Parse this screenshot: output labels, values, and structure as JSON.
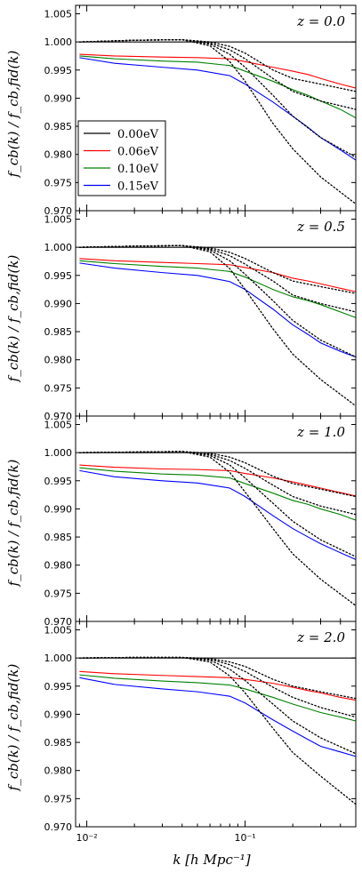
{
  "colors": {
    "0.00eV": "#000000",
    "0.06eV": "#ff0000",
    "0.10eV": "#008000",
    "0.15eV": "#0000ff",
    "dotted": "#000000"
  },
  "xlabel": "k [h Mpc⁻¹]",
  "ylabel": "f_cb(k) / f_cb,fid(k)",
  "chart_data": [
    {
      "type": "line",
      "z_label": "z = 0.0",
      "xscale": "log",
      "xlim": [
        0.0085,
        0.5
      ],
      "ylim": [
        0.97,
        1.0065
      ],
      "yticks": [
        "0.970",
        "0.975",
        "0.980",
        "0.985",
        "0.990",
        "0.995",
        "1.000",
        "1.005"
      ],
      "xticks": [
        "10⁻²",
        "10⁻¹"
      ],
      "legend": {
        "placement": "center-left",
        "entries": [
          "0.00eV",
          "0.06eV",
          "0.10eV",
          "0.15eV"
        ]
      },
      "series": [
        {
          "name": "0.00eV",
          "style": "solid",
          "x": [
            0.009,
            0.5
          ],
          "y": [
            1.0,
            1.0
          ]
        },
        {
          "name": "0.06eV",
          "style": "solid",
          "x": [
            0.009,
            0.015,
            0.03,
            0.05,
            0.08,
            0.1,
            0.15,
            0.2,
            0.25,
            0.3,
            0.4,
            0.5
          ],
          "y": [
            0.9978,
            0.9975,
            0.9973,
            0.9972,
            0.997,
            0.9965,
            0.9955,
            0.9948,
            0.9942,
            0.9935,
            0.9925,
            0.9918
          ]
        },
        {
          "name": "0.10eV",
          "style": "solid",
          "x": [
            0.009,
            0.015,
            0.03,
            0.05,
            0.08,
            0.1,
            0.15,
            0.2,
            0.25,
            0.3,
            0.4,
            0.5
          ],
          "y": [
            0.9975,
            0.997,
            0.9966,
            0.9964,
            0.9958,
            0.9948,
            0.993,
            0.9915,
            0.9905,
            0.9895,
            0.988,
            0.9865
          ]
        },
        {
          "name": "0.15eV",
          "style": "solid",
          "x": [
            0.009,
            0.015,
            0.03,
            0.05,
            0.08,
            0.1,
            0.15,
            0.2,
            0.25,
            0.3,
            0.4,
            0.5
          ],
          "y": [
            0.9972,
            0.9962,
            0.9955,
            0.995,
            0.994,
            0.9925,
            0.9893,
            0.9868,
            0.9848,
            0.983,
            0.9808,
            0.979
          ]
        },
        {
          "style": "dotted",
          "x": [
            0.009,
            0.02,
            0.04,
            0.06,
            0.08,
            0.1,
            0.15,
            0.2,
            0.3,
            0.5
          ],
          "y": [
            1.0,
            1.0003,
            1.0004,
            1.0,
            0.9992,
            0.998,
            0.995,
            0.9935,
            0.9925,
            0.9912
          ]
        },
        {
          "style": "dotted",
          "x": [
            0.009,
            0.02,
            0.04,
            0.06,
            0.08,
            0.1,
            0.15,
            0.2,
            0.3,
            0.5
          ],
          "y": [
            1.0,
            1.0003,
            1.0004,
            0.9998,
            0.9986,
            0.997,
            0.9935,
            0.9912,
            0.9895,
            0.988
          ]
        },
        {
          "style": "dotted",
          "x": [
            0.009,
            0.02,
            0.04,
            0.06,
            0.08,
            0.1,
            0.15,
            0.2,
            0.3,
            0.5
          ],
          "y": [
            1.0,
            1.0003,
            1.0004,
            0.9996,
            0.9978,
            0.9955,
            0.9905,
            0.9868,
            0.983,
            0.9795
          ]
        },
        {
          "style": "dotted",
          "x": [
            0.009,
            0.02,
            0.04,
            0.06,
            0.08,
            0.1,
            0.15,
            0.2,
            0.3,
            0.5
          ],
          "y": [
            1.0,
            1.0003,
            1.0004,
            0.9993,
            0.9965,
            0.993,
            0.9855,
            0.981,
            0.976,
            0.9712
          ]
        }
      ]
    },
    {
      "type": "line",
      "z_label": "z = 0.5",
      "xscale": "log",
      "xlim": [
        0.0085,
        0.5
      ],
      "ylim": [
        0.97,
        1.0065
      ],
      "yticks": [
        "0.970",
        "0.975",
        "0.980",
        "0.985",
        "0.990",
        "0.995",
        "1.000",
        "1.005"
      ],
      "xticks": [
        "10⁻²",
        "10⁻¹"
      ],
      "series": [
        {
          "name": "0.00eV",
          "style": "solid",
          "x": [
            0.009,
            0.5
          ],
          "y": [
            1.0,
            1.0
          ]
        },
        {
          "name": "0.06eV",
          "style": "solid",
          "x": [
            0.009,
            0.015,
            0.03,
            0.05,
            0.08,
            0.1,
            0.15,
            0.2,
            0.25,
            0.3,
            0.4,
            0.5
          ],
          "y": [
            0.998,
            0.9976,
            0.9973,
            0.9971,
            0.9969,
            0.9964,
            0.9955,
            0.9945,
            0.994,
            0.9935,
            0.9927,
            0.9921
          ]
        },
        {
          "name": "0.10eV",
          "style": "solid",
          "x": [
            0.009,
            0.015,
            0.03,
            0.05,
            0.08,
            0.1,
            0.15,
            0.2,
            0.25,
            0.3,
            0.4,
            0.5
          ],
          "y": [
            0.9976,
            0.9971,
            0.9966,
            0.9963,
            0.9957,
            0.9947,
            0.9925,
            0.9912,
            0.9905,
            0.9898,
            0.9885,
            0.9875
          ]
        },
        {
          "name": "0.15eV",
          "style": "solid",
          "x": [
            0.009,
            0.015,
            0.03,
            0.05,
            0.08,
            0.1,
            0.15,
            0.2,
            0.25,
            0.3,
            0.4,
            0.5
          ],
          "y": [
            0.9972,
            0.9963,
            0.9955,
            0.995,
            0.9939,
            0.9925,
            0.989,
            0.9862,
            0.9845,
            0.983,
            0.9815,
            0.9805
          ]
        },
        {
          "style": "dotted",
          "x": [
            0.009,
            0.02,
            0.04,
            0.06,
            0.08,
            0.1,
            0.15,
            0.2,
            0.3,
            0.5
          ],
          "y": [
            1.0,
            1.0002,
            1.0003,
            0.9999,
            0.9991,
            0.998,
            0.9955,
            0.994,
            0.993,
            0.9918
          ]
        },
        {
          "style": "dotted",
          "x": [
            0.009,
            0.02,
            0.04,
            0.06,
            0.08,
            0.1,
            0.15,
            0.2,
            0.3,
            0.5
          ],
          "y": [
            1.0,
            1.0002,
            1.0003,
            0.9997,
            0.9985,
            0.997,
            0.994,
            0.9915,
            0.99,
            0.9885
          ]
        },
        {
          "style": "dotted",
          "x": [
            0.009,
            0.02,
            0.04,
            0.06,
            0.08,
            0.1,
            0.15,
            0.2,
            0.3,
            0.5
          ],
          "y": [
            1.0,
            1.0002,
            1.0003,
            0.9995,
            0.9976,
            0.9952,
            0.9905,
            0.987,
            0.9835,
            0.9805
          ]
        },
        {
          "style": "dotted",
          "x": [
            0.009,
            0.02,
            0.04,
            0.06,
            0.08,
            0.1,
            0.15,
            0.2,
            0.3,
            0.5
          ],
          "y": [
            1.0,
            1.0002,
            1.0003,
            0.9992,
            0.9962,
            0.9925,
            0.9855,
            0.981,
            0.9765,
            0.9718
          ]
        }
      ]
    },
    {
      "type": "line",
      "z_label": "z = 1.0",
      "xscale": "log",
      "xlim": [
        0.0085,
        0.5
      ],
      "ylim": [
        0.97,
        1.0065
      ],
      "yticks": [
        "0.970",
        "0.975",
        "0.980",
        "0.985",
        "0.990",
        "0.995",
        "1.000",
        "1.005"
      ],
      "xticks": [
        "10⁻²",
        "10⁻¹"
      ],
      "series": [
        {
          "name": "0.00eV",
          "style": "solid",
          "x": [
            0.009,
            0.5
          ],
          "y": [
            1.0,
            1.0
          ]
        },
        {
          "name": "0.06eV",
          "style": "solid",
          "x": [
            0.009,
            0.015,
            0.03,
            0.05,
            0.08,
            0.1,
            0.15,
            0.2,
            0.25,
            0.3,
            0.4,
            0.5
          ],
          "y": [
            0.9978,
            0.9974,
            0.9971,
            0.997,
            0.9968,
            0.9963,
            0.9955,
            0.9948,
            0.9942,
            0.9937,
            0.9929,
            0.9923
          ]
        },
        {
          "name": "0.10eV",
          "style": "solid",
          "x": [
            0.009,
            0.015,
            0.03,
            0.05,
            0.08,
            0.1,
            0.15,
            0.2,
            0.25,
            0.3,
            0.4,
            0.5
          ],
          "y": [
            0.9973,
            0.9967,
            0.9962,
            0.996,
            0.9955,
            0.9945,
            0.9928,
            0.9915,
            0.9908,
            0.99,
            0.989,
            0.988
          ]
        },
        {
          "name": "0.15eV",
          "style": "solid",
          "x": [
            0.009,
            0.015,
            0.03,
            0.05,
            0.08,
            0.1,
            0.15,
            0.2,
            0.25,
            0.3,
            0.4,
            0.5
          ],
          "y": [
            0.9968,
            0.9957,
            0.995,
            0.9946,
            0.9937,
            0.9922,
            0.9888,
            0.9865,
            0.985,
            0.9838,
            0.9822,
            0.981
          ]
        },
        {
          "style": "dotted",
          "x": [
            0.009,
            0.02,
            0.04,
            0.06,
            0.08,
            0.1,
            0.15,
            0.2,
            0.3,
            0.5
          ],
          "y": [
            1.0,
            1.0001,
            1.0002,
            0.9999,
            0.9992,
            0.9982,
            0.9958,
            0.9945,
            0.9935,
            0.9922
          ]
        },
        {
          "style": "dotted",
          "x": [
            0.009,
            0.02,
            0.04,
            0.06,
            0.08,
            0.1,
            0.15,
            0.2,
            0.3,
            0.5
          ],
          "y": [
            1.0,
            1.0001,
            1.0002,
            0.9997,
            0.9986,
            0.9972,
            0.9942,
            0.9922,
            0.9905,
            0.989
          ]
        },
        {
          "style": "dotted",
          "x": [
            0.009,
            0.02,
            0.04,
            0.06,
            0.08,
            0.1,
            0.15,
            0.2,
            0.3,
            0.5
          ],
          "y": [
            1.0,
            1.0001,
            1.0002,
            0.9995,
            0.9978,
            0.9955,
            0.991,
            0.9878,
            0.9845,
            0.9815
          ]
        },
        {
          "style": "dotted",
          "x": [
            0.009,
            0.02,
            0.04,
            0.06,
            0.08,
            0.1,
            0.15,
            0.2,
            0.3,
            0.5
          ],
          "y": [
            1.0,
            1.0001,
            1.0002,
            0.9992,
            0.9965,
            0.993,
            0.9865,
            0.982,
            0.9775,
            0.9728
          ]
        }
      ]
    },
    {
      "type": "line",
      "z_label": "z = 2.0",
      "xscale": "log",
      "xlim": [
        0.0085,
        0.5
      ],
      "ylim": [
        0.97,
        1.0065
      ],
      "yticks": [
        "0.970",
        "0.975",
        "0.980",
        "0.985",
        "0.990",
        "0.995",
        "1.000",
        "1.005"
      ],
      "xticks": [
        "10⁻²",
        "10⁻¹"
      ],
      "series": [
        {
          "name": "0.00eV",
          "style": "solid",
          "x": [
            0.009,
            0.5
          ],
          "y": [
            1.0,
            1.0
          ]
        },
        {
          "name": "0.06eV",
          "style": "solid",
          "x": [
            0.009,
            0.015,
            0.03,
            0.05,
            0.08,
            0.1,
            0.15,
            0.2,
            0.25,
            0.3,
            0.4,
            0.5
          ],
          "y": [
            0.9976,
            0.9972,
            0.9969,
            0.9967,
            0.9965,
            0.9962,
            0.9955,
            0.9948,
            0.9942,
            0.9938,
            0.993,
            0.9925
          ]
        },
        {
          "name": "0.10eV",
          "style": "solid",
          "x": [
            0.009,
            0.015,
            0.03,
            0.05,
            0.08,
            0.1,
            0.15,
            0.2,
            0.25,
            0.3,
            0.4,
            0.5
          ],
          "y": [
            0.997,
            0.9964,
            0.9959,
            0.9956,
            0.9952,
            0.9945,
            0.993,
            0.9918,
            0.991,
            0.9903,
            0.9895,
            0.9888
          ]
        },
        {
          "name": "0.15eV",
          "style": "solid",
          "x": [
            0.009,
            0.015,
            0.03,
            0.05,
            0.08,
            0.1,
            0.15,
            0.2,
            0.25,
            0.3,
            0.4,
            0.5
          ],
          "y": [
            0.9965,
            0.9953,
            0.9945,
            0.994,
            0.9932,
            0.992,
            0.989,
            0.987,
            0.9855,
            0.9843,
            0.9833,
            0.9825
          ]
        },
        {
          "style": "dotted",
          "x": [
            0.009,
            0.02,
            0.04,
            0.06,
            0.08,
            0.1,
            0.15,
            0.2,
            0.3,
            0.5
          ],
          "y": [
            1.0,
            1.0001,
            1.0001,
            0.9999,
            0.9993,
            0.9985,
            0.9962,
            0.995,
            0.994,
            0.9928
          ]
        },
        {
          "style": "dotted",
          "x": [
            0.009,
            0.02,
            0.04,
            0.06,
            0.08,
            0.1,
            0.15,
            0.2,
            0.3,
            0.5
          ],
          "y": [
            1.0,
            1.0001,
            1.0001,
            0.9998,
            0.9988,
            0.9976,
            0.9948,
            0.993,
            0.9912,
            0.9895
          ]
        },
        {
          "style": "dotted",
          "x": [
            0.009,
            0.02,
            0.04,
            0.06,
            0.08,
            0.1,
            0.15,
            0.2,
            0.3,
            0.5
          ],
          "y": [
            1.0,
            1.0001,
            1.0001,
            0.9996,
            0.998,
            0.996,
            0.9918,
            0.9888,
            0.9858,
            0.983
          ]
        },
        {
          "style": "dotted",
          "x": [
            0.009,
            0.02,
            0.04,
            0.06,
            0.08,
            0.1,
            0.15,
            0.2,
            0.3,
            0.5
          ],
          "y": [
            1.0,
            1.0001,
            1.0001,
            0.9993,
            0.9968,
            0.9938,
            0.9875,
            0.9832,
            0.979,
            0.974
          ]
        }
      ]
    }
  ]
}
